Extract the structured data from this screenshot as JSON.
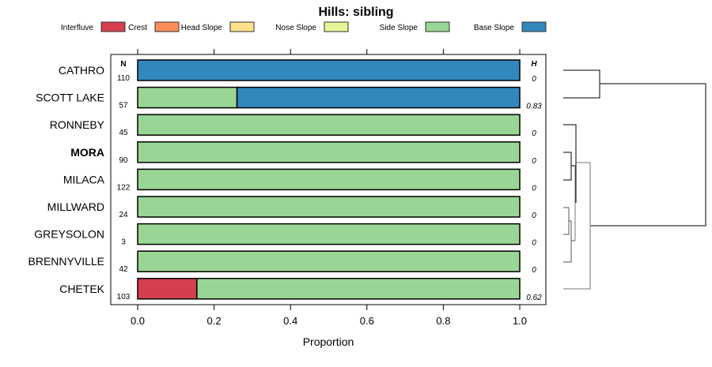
{
  "chart_data": {
    "type": "bar",
    "stacked": true,
    "orientation": "horizontal",
    "title": "Hills: sibling",
    "xlabel": "Proportion",
    "xlim": [
      0,
      1
    ],
    "xticks": [
      "0.0",
      "0.2",
      "0.4",
      "0.6",
      "0.8",
      "1.0"
    ],
    "n_header": "N",
    "h_header": "H",
    "legend_position": "top",
    "legend": [
      {
        "name": "Interfluve",
        "color": "#d53e4f"
      },
      {
        "name": "Crest",
        "color": "#fc8d59"
      },
      {
        "name": "Head Slope",
        "color": "#fee08b"
      },
      {
        "name": "Nose Slope",
        "color": "#e6f598"
      },
      {
        "name": "Side Slope",
        "color": "#99d594"
      },
      {
        "name": "Base Slope",
        "color": "#3288bd"
      }
    ],
    "categories": [
      {
        "name": "CATHRO",
        "n": "110",
        "h": "0",
        "bold": false,
        "values": [
          0,
          0,
          0,
          0,
          0,
          1
        ]
      },
      {
        "name": "SCOTT LAKE",
        "n": "57",
        "h": "0.83",
        "bold": false,
        "values": [
          0,
          0,
          0,
          0,
          0.26,
          0.74
        ]
      },
      {
        "name": "RONNEBY",
        "n": "45",
        "h": "0",
        "bold": false,
        "values": [
          0,
          0,
          0,
          0,
          1,
          0
        ]
      },
      {
        "name": "MORA",
        "n": "90",
        "h": "0",
        "bold": true,
        "values": [
          0,
          0,
          0,
          0,
          1,
          0
        ]
      },
      {
        "name": "MILACA",
        "n": "122",
        "h": "0",
        "bold": false,
        "values": [
          0,
          0,
          0,
          0,
          1,
          0
        ]
      },
      {
        "name": "MILLWARD",
        "n": "24",
        "h": "0",
        "bold": false,
        "values": [
          0,
          0,
          0,
          0,
          1,
          0
        ]
      },
      {
        "name": "GREYSOLON",
        "n": "3",
        "h": "0",
        "bold": false,
        "values": [
          0,
          0,
          0,
          0,
          1,
          0
        ]
      },
      {
        "name": "BRENNYVILLE",
        "n": "42",
        "h": "0",
        "bold": false,
        "values": [
          0,
          0,
          0,
          0,
          1,
          0
        ]
      },
      {
        "name": "CHETEK",
        "n": "103",
        "h": "0.62",
        "bold": false,
        "values": [
          0.155,
          0,
          0,
          0,
          0.845,
          0
        ]
      }
    ]
  }
}
